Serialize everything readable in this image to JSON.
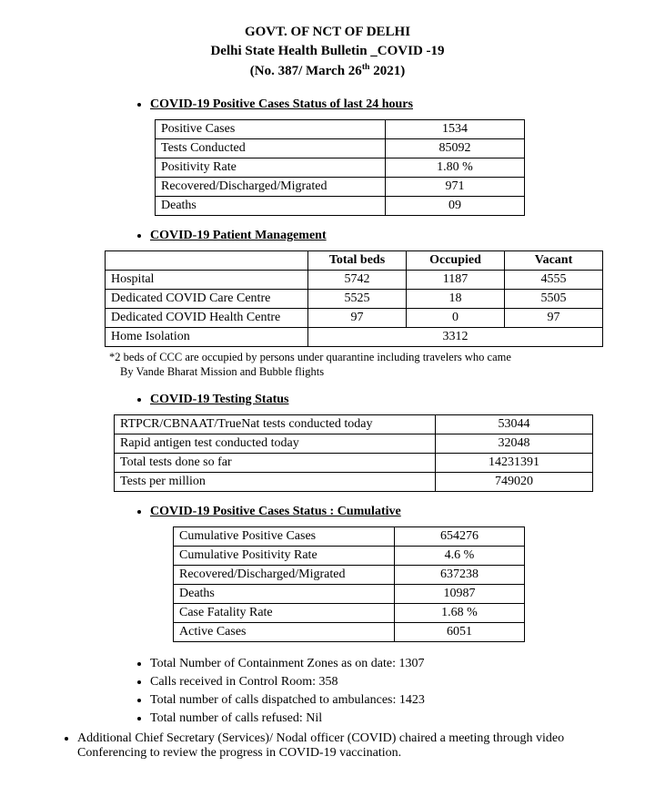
{
  "header": {
    "line1": "GOVT. OF NCT OF DELHI",
    "line2": "Delhi State Health Bulletin _COVID -19",
    "line3_pre": "(No. 387/ March 26",
    "line3_sup": "th",
    "line3_post": " 2021)"
  },
  "sections": {
    "s1": {
      "title": "COVID-19 Positive Cases Status of last 24 hours ",
      "rows": [
        [
          "Positive Cases",
          "1534"
        ],
        [
          "Tests Conducted",
          "85092"
        ],
        [
          "Positivity Rate",
          "1.80 %"
        ],
        [
          "Recovered/Discharged/Migrated",
          "971"
        ],
        [
          "Deaths",
          "09"
        ]
      ],
      "col_widths": [
        "240px",
        "140px"
      ]
    },
    "s2": {
      "title": "COVID-19 Patient Management",
      "headers": [
        "",
        "Total beds",
        "Occupied",
        "Vacant"
      ],
      "rows": [
        [
          "Hospital",
          "5742",
          "1187",
          "4555"
        ],
        [
          "Dedicated COVID Care Centre",
          "5525",
          "18",
          "5505"
        ],
        [
          "Dedicated COVID Health Centre",
          "97",
          "0",
          "97"
        ]
      ],
      "home_iso_label": "Home Isolation",
      "home_iso_val": "3312",
      "col_widths": [
        "210px",
        "95px",
        "95px",
        "95px"
      ],
      "footnote_l1": "*2 beds of CCC are occupied by persons under quarantine including travelers who came",
      "footnote_l2": "By Vande Bharat Mission and Bubble flights"
    },
    "s3": {
      "title": "COVID-19 Testing Status ",
      "rows": [
        [
          "RTPCR/CBNAAT/TrueNat tests conducted today",
          "53044"
        ],
        [
          "Rapid antigen test conducted today",
          "32048"
        ],
        [
          "Total tests done so far",
          "14231391"
        ],
        [
          "Tests per million",
          "749020"
        ]
      ],
      "col_widths": [
        "340px",
        "160px"
      ]
    },
    "s4": {
      "title": "COVID-19 Positive Cases Status : Cumulative",
      "rows": [
        [
          "Cumulative Positive Cases",
          "654276"
        ],
        [
          "Cumulative Positivity Rate",
          "4.6 %"
        ],
        [
          "Recovered/Discharged/Migrated",
          "637238"
        ],
        [
          "Deaths",
          "10987"
        ],
        [
          "Case Fatality Rate",
          "1.68 %"
        ],
        [
          "Active Cases",
          "6051"
        ]
      ],
      "col_widths": [
        "230px",
        "130px"
      ]
    },
    "footer_bullets": [
      "Total Number of Containment Zones as on date: 1307",
      "Calls received in Control Room: 358",
      "Total number of calls dispatched to ambulances: 1423",
      "Total number of calls refused: Nil"
    ],
    "outer_bullet": "Additional Chief Secretary (Services)/ Nodal officer (COVID) chaired a meeting through video Conferencing to review the progress in COVID-19 vaccination."
  }
}
